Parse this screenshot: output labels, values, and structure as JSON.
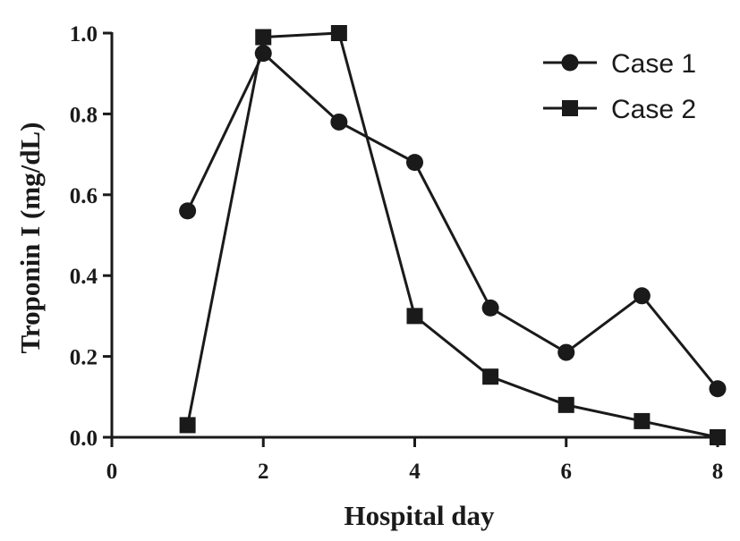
{
  "chart_data": {
    "type": "line",
    "xlabel": "Hospital day",
    "ylabel": "Troponin I (mg/dL)",
    "xlim": [
      0,
      8
    ],
    "ylim": [
      0,
      1.0
    ],
    "xticks": [
      "0",
      "2",
      "4",
      "6",
      "8"
    ],
    "yticks": [
      "0.0",
      "0.2",
      "0.4",
      "0.6",
      "0.8",
      "1.0"
    ],
    "grid": false,
    "legend_position": "top-right",
    "series": [
      {
        "name": "Case 1",
        "marker": "circle",
        "color": "#1a1a1a",
        "x": [
          1,
          2,
          3,
          4,
          5,
          6,
          7,
          8
        ],
        "y": [
          0.56,
          0.95,
          0.78,
          0.68,
          0.32,
          0.21,
          0.35,
          0.12
        ]
      },
      {
        "name": "Case 2",
        "marker": "square",
        "color": "#1a1a1a",
        "x": [
          1,
          2,
          3,
          4,
          5,
          6,
          7,
          8
        ],
        "y": [
          0.03,
          0.99,
          1.0,
          0.3,
          0.15,
          0.08,
          0.04,
          0.0
        ]
      }
    ]
  }
}
